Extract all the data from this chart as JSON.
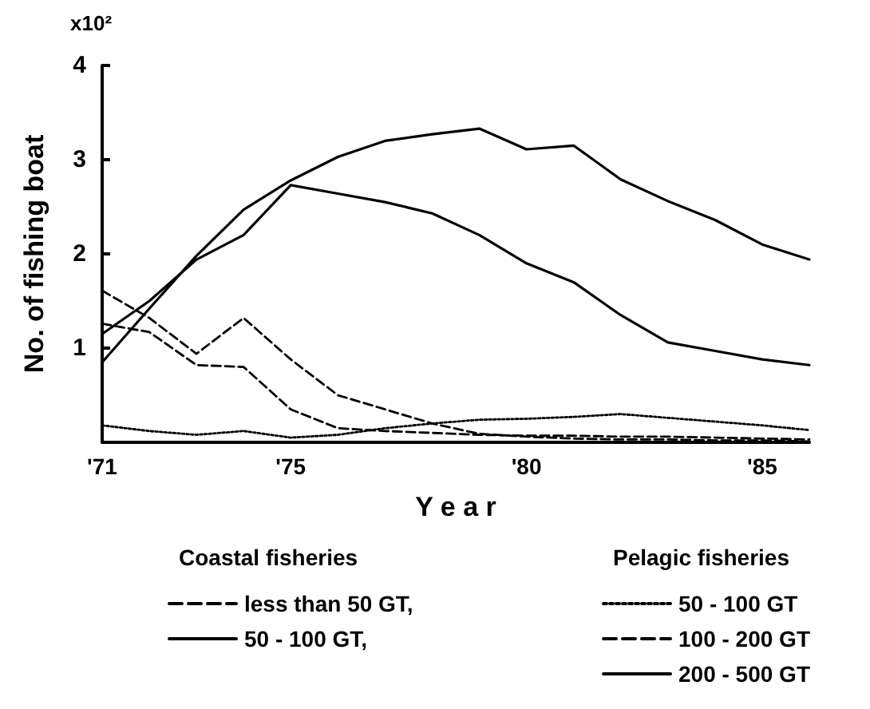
{
  "chart_data": {
    "type": "line",
    "xlabel": "Y e a r",
    "ylabel": "No. of fishing boat",
    "annotations": [
      "x10²",
      "Coastal fisheries",
      "Pelagic fisheries"
    ],
    "x": [
      1971,
      1972,
      1973,
      1974,
      1975,
      1976,
      1977,
      1978,
      1979,
      1980,
      1981,
      1982,
      1983,
      1984,
      1985,
      1986
    ],
    "xlim": [
      1971,
      1986
    ],
    "xticks": [
      {
        "value": 1971,
        "label": "'71"
      },
      {
        "value": 1975,
        "label": "'75"
      },
      {
        "value": 1980,
        "label": "'80"
      },
      {
        "value": 1985,
        "label": "'85"
      }
    ],
    "ylim": [
      0,
      4
    ],
    "yticks": [
      {
        "value": 0,
        "label": null
      },
      1,
      2,
      3,
      4
    ],
    "grid": false,
    "legend": "bottom",
    "marker": "none",
    "series": [
      {
        "name": "less than 50 GT,",
        "color": "#000000",
        "line_style": "dashed",
        "values": [
          1.61,
          1.32,
          0.94,
          1.32,
          0.88,
          0.5,
          0.35,
          0.2,
          0.09,
          0.06,
          0.04,
          0.03,
          0.03,
          0.02,
          0.02,
          0.01
        ]
      },
      {
        "name": "50 - 100 GT,",
        "color": "#000000",
        "line_style": "solid",
        "values": [
          1.15,
          1.5,
          1.94,
          2.2,
          2.73,
          2.64,
          2.55,
          2.43,
          2.2,
          1.9,
          1.7,
          1.35,
          1.06,
          0.97,
          0.88,
          0.82
        ]
      },
      {
        "name": "50 - 100 GT",
        "color": "#000000",
        "line_style": "dotted",
        "values": [
          0.18,
          0.12,
          0.08,
          0.12,
          0.05,
          0.08,
          0.15,
          0.2,
          0.24,
          0.25,
          0.27,
          0.3,
          0.26,
          0.22,
          0.18,
          0.13
        ]
      },
      {
        "name": "100 - 200 GT",
        "color": "#000000",
        "line_style": "dashed",
        "values": [
          1.26,
          1.17,
          0.82,
          0.8,
          0.35,
          0.15,
          0.12,
          0.1,
          0.08,
          0.07,
          0.07,
          0.06,
          0.06,
          0.05,
          0.04,
          0.03
        ]
      },
      {
        "name": "200 - 500 GT",
        "color": "#000000",
        "line_style": "solid",
        "values": [
          0.85,
          1.42,
          1.98,
          2.47,
          2.78,
          3.03,
          3.2,
          3.27,
          3.33,
          3.11,
          3.15,
          2.79,
          2.56,
          2.36,
          2.1,
          1.94
        ]
      }
    ]
  }
}
